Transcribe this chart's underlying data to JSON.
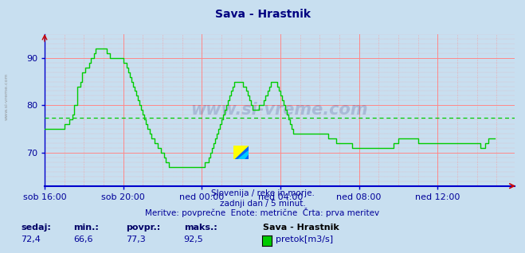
{
  "title": "Sava - Hrastnik",
  "title_color": "#000080",
  "bg_color": "#c8dff0",
  "plot_bg_color": "#c8dff0",
  "line_color": "#00cc00",
  "avg_value": 77.3,
  "min_value": 66.6,
  "max_value": 92.5,
  "current_value": 72.4,
  "xlim": [
    0,
    287
  ],
  "ylim": [
    63,
    95
  ],
  "yticks": [
    70,
    80,
    90
  ],
  "xtick_labels": [
    "sob 16:00",
    "sob 20:00",
    "ned 00:00",
    "ned 04:00",
    "ned 08:00",
    "ned 12:00"
  ],
  "xtick_positions": [
    0,
    48,
    96,
    144,
    192,
    240
  ],
  "grid_color": "#ff8888",
  "axis_color": "#0000cc",
  "text_color": "#000099",
  "bold_text_color": "#000066",
  "watermark": "www.si-vreme.com",
  "subtitle1": "Slovenija / reke in morje.",
  "subtitle2": "zadnji dan / 5 minut.",
  "subtitle3": "Meritve: povprečne  Enote: metrične  Črta: prva meritev",
  "legend_title": "Sava - Hrastnik",
  "legend_label": "pretok[m3/s]",
  "stat_labels": [
    "sedaj:",
    "min.:",
    "povpr.:",
    "maks.:"
  ],
  "stat_values": [
    "72,4",
    "66,6",
    "77,3",
    "92,5"
  ],
  "y_values": [
    75,
    75,
    75,
    75,
    75,
    75,
    75,
    75,
    75,
    75,
    75,
    75,
    76,
    76,
    76,
    77,
    77,
    78,
    80,
    80,
    84,
    84,
    85,
    87,
    87,
    88,
    88,
    89,
    90,
    90,
    91,
    92,
    92,
    92,
    92,
    92,
    92,
    92,
    91,
    91,
    90,
    90,
    90,
    90,
    90,
    90,
    90,
    90,
    89,
    89,
    88,
    87,
    86,
    85,
    84,
    83,
    82,
    81,
    80,
    79,
    78,
    77,
    76,
    75,
    74,
    73,
    73,
    72,
    72,
    71,
    71,
    70,
    70,
    69,
    68,
    68,
    67,
    67,
    67,
    67,
    67,
    67,
    67,
    67,
    67,
    67,
    67,
    67,
    67,
    67,
    67,
    67,
    67,
    67,
    67,
    67,
    67,
    67,
    68,
    68,
    69,
    70,
    71,
    72,
    73,
    74,
    75,
    76,
    77,
    78,
    79,
    80,
    81,
    82,
    83,
    84,
    85,
    85,
    85,
    85,
    85,
    84,
    84,
    83,
    82,
    81,
    80,
    79,
    79,
    79,
    79,
    80,
    80,
    80,
    81,
    82,
    83,
    84,
    85,
    85,
    85,
    85,
    84,
    83,
    82,
    81,
    80,
    79,
    78,
    77,
    76,
    75,
    74,
    74,
    74,
    74,
    74,
    74,
    74,
    74,
    74,
    74,
    74,
    74,
    74,
    74,
    74,
    74,
    74,
    74,
    74,
    74,
    74,
    73,
    73,
    73,
    73,
    73,
    72,
    72,
    72,
    72,
    72,
    72,
    72,
    72,
    72,
    72,
    71,
    71,
    71,
    71,
    71,
    71,
    71,
    71,
    71,
    71,
    71,
    71,
    71,
    71,
    71,
    71,
    71,
    71,
    71,
    71,
    71,
    71,
    71,
    71,
    71,
    72,
    72,
    72,
    73,
    73,
    73,
    73,
    73,
    73,
    73,
    73,
    73,
    73,
    73,
    73,
    72,
    72,
    72,
    72,
    72,
    72,
    72,
    72,
    72,
    72,
    72,
    72,
    72,
    72,
    72,
    72,
    72,
    72,
    72,
    72,
    72,
    72,
    72,
    72,
    72,
    72,
    72,
    72,
    72,
    72,
    72,
    72,
    72,
    72,
    72,
    72,
    72,
    72,
    71,
    71,
    71,
    72,
    72,
    73,
    73,
    73,
    73,
    73
  ]
}
